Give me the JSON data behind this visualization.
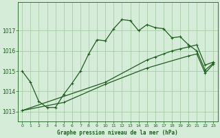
{
  "title": "Graphe pression niveau de la mer (hPa)",
  "background_color": "#d4ecd8",
  "grid_color": "#a8cca8",
  "line_color": "#1e5c1e",
  "xlim": [
    -0.5,
    23.5
  ],
  "ylim": [
    1012.5,
    1018.4
  ],
  "yticks": [
    1013,
    1014,
    1015,
    1016,
    1017
  ],
  "xticks": [
    0,
    1,
    2,
    3,
    4,
    5,
    6,
    7,
    8,
    9,
    10,
    11,
    12,
    13,
    14,
    15,
    16,
    17,
    18,
    19,
    20,
    21,
    22,
    23
  ],
  "series1_x": [
    0,
    1,
    2,
    3,
    4,
    5,
    6,
    7,
    8,
    9,
    10,
    11,
    12,
    13,
    14,
    15,
    16,
    17,
    18,
    19,
    20,
    21,
    22,
    23
  ],
  "series1_y": [
    1015.0,
    1014.45,
    1013.5,
    1013.2,
    1013.2,
    1013.85,
    1014.4,
    1015.0,
    1015.85,
    1016.55,
    1016.5,
    1017.1,
    1017.55,
    1017.5,
    1017.0,
    1017.3,
    1017.15,
    1017.1,
    1016.65,
    1016.7,
    1016.3,
    1016.0,
    1015.05,
    1015.4
  ],
  "series2_x": [
    0,
    10,
    15,
    16,
    17,
    18,
    19,
    20,
    21,
    22,
    23
  ],
  "series2_y": [
    1013.05,
    1014.45,
    1015.55,
    1015.7,
    1015.85,
    1016.0,
    1016.1,
    1016.2,
    1016.3,
    1015.3,
    1015.45
  ],
  "series3_x": [
    0,
    5,
    10,
    15,
    20,
    21,
    22,
    23
  ],
  "series3_y": [
    1013.05,
    1013.45,
    1014.35,
    1015.15,
    1015.75,
    1015.85,
    1014.9,
    1015.35
  ]
}
